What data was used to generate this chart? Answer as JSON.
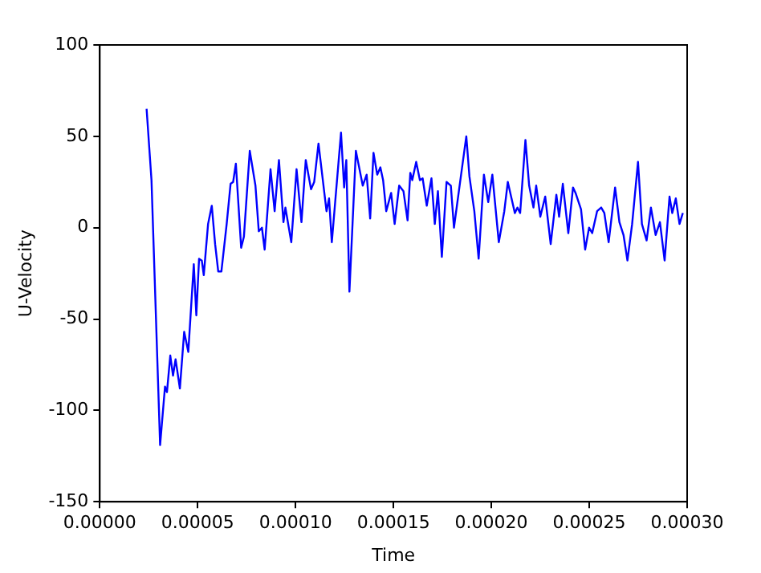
{
  "chart_data": {
    "type": "line",
    "xlabel": "Time",
    "ylabel": "U-Velocity",
    "xlim": [
      0,
      0.0003
    ],
    "ylim": [
      -150,
      100
    ],
    "xticks": [
      {
        "value": 0,
        "label": "0.00000"
      },
      {
        "value": 5e-05,
        "label": "0.00005"
      },
      {
        "value": 0.0001,
        "label": "0.00010"
      },
      {
        "value": 0.00015,
        "label": "0.00015"
      },
      {
        "value": 0.0002,
        "label": "0.00020"
      },
      {
        "value": 0.00025,
        "label": "0.00025"
      },
      {
        "value": 0.0003,
        "label": "0.00030"
      }
    ],
    "yticks": [
      -150,
      -100,
      -50,
      0,
      50,
      100
    ],
    "grid": false,
    "legend": false,
    "marker": "none",
    "line_style": "solid",
    "x": [
      2.39e-05,
      2.64e-05,
      3.08e-05,
      3.33e-05,
      3.43e-05,
      3.6e-05,
      3.74e-05,
      3.87e-05,
      4.09e-05,
      4.31e-05,
      4.52e-05,
      4.8e-05,
      4.93e-05,
      5.07e-05,
      5.21e-05,
      5.31e-05,
      5.53e-05,
      5.72e-05,
      5.89e-05,
      6.05e-05,
      6.21e-05,
      6.48e-05,
      6.68e-05,
      6.81e-05,
      6.95e-05,
      7.22e-05,
      7.36e-05,
      7.66e-05,
      7.95e-05,
      8.12e-05,
      8.28e-05,
      8.42e-05,
      8.72e-05,
      8.93e-05,
      9.15e-05,
      9.38e-05,
      9.48e-05,
      9.78e-05,
      0.0001005,
      0.000103,
      0.0001052,
      0.0001079,
      0.0001095,
      0.0001117,
      0.0001158,
      0.0001171,
      0.0001185,
      0.0001232,
      0.0001248,
      0.0001259,
      0.0001275,
      0.0001308,
      0.0001343,
      0.0001363,
      0.0001381,
      0.0001398,
      0.0001417,
      0.0001433,
      0.0001447,
      0.0001463,
      0.0001488,
      0.0001506,
      0.0001529,
      0.0001551,
      0.0001572,
      0.0001586,
      0.0001596,
      0.0001616,
      0.0001635,
      0.0001649,
      0.000167,
      0.0001694,
      0.0001711,
      0.0001727,
      0.0001747,
      0.0001771,
      0.0001793,
      0.0001809,
      0.0001839,
      0.0001872,
      0.0001888,
      0.0001913,
      0.0001935,
      0.0001962,
      0.0001984,
      0.0002005,
      0.0002038,
      0.0002066,
      0.0002084,
      0.0002103,
      0.000212,
      0.0002133,
      0.0002147,
      0.0002174,
      0.0002193,
      0.0002215,
      0.0002229,
      0.000225,
      0.0002275,
      0.0002303,
      0.0002332,
      0.0002346,
      0.0002365,
      0.0002393,
      0.0002417,
      0.000243,
      0.0002458,
      0.0002479,
      0.0002499,
      0.0002515,
      0.000254,
      0.0002561,
      0.0002577,
      0.0002599,
      0.0002632,
      0.0002654,
      0.0002675,
      0.0002695,
      0.0002719,
      0.0002749,
      0.0002769,
      0.0002793,
      0.0002815,
      0.0002839,
      0.0002861,
      0.0002885,
      0.000291,
      0.0002924,
      0.0002942,
      0.0002961,
      0.0002978
    ],
    "series": [
      {
        "color": "#0000ff",
        "values": [
          65,
          26,
          -119,
          -87,
          -90,
          -70,
          -81,
          -72,
          -88,
          -57,
          -68,
          -20,
          -48,
          -17,
          -18,
          -26,
          2,
          12,
          -9,
          -24,
          -24,
          2,
          24,
          25,
          35,
          -11,
          -5,
          42,
          23,
          -2,
          0,
          -12,
          32,
          9,
          37,
          3,
          11,
          -8,
          32,
          3,
          37,
          21,
          25,
          46,
          9,
          16,
          -8,
          52,
          22,
          37,
          -35,
          42,
          23,
          29,
          5,
          41,
          29,
          33,
          26,
          9,
          19,
          2,
          23,
          20,
          4,
          30,
          26,
          36,
          26,
          27,
          12,
          27,
          2,
          20,
          -16,
          25,
          23,
          0,
          24,
          50,
          28,
          9,
          -17,
          29,
          14,
          29,
          -8,
          9,
          25,
          16,
          8,
          11,
          8,
          48,
          23,
          11,
          23,
          6,
          17,
          -9,
          18,
          6,
          24,
          -3,
          22,
          19,
          10,
          -12,
          0,
          -3,
          9,
          11,
          8,
          -8,
          22,
          3,
          -4,
          -18,
          2,
          36,
          2,
          -7,
          11,
          -4,
          3,
          -18,
          17,
          8,
          16,
          2,
          8
        ]
      }
    ]
  }
}
